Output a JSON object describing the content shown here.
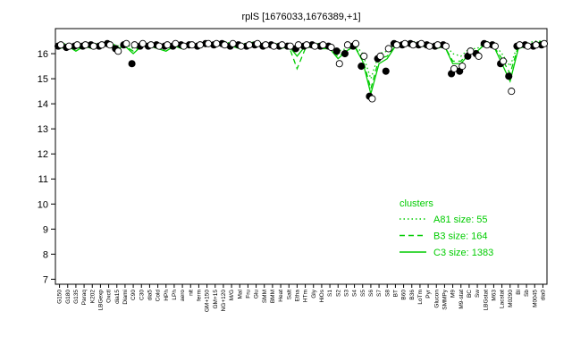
{
  "chart_data": {
    "type": "line",
    "title": "rplS [1676033,1676389,+1]",
    "categories": [
      "G150",
      "G180",
      "G135",
      "Paraq",
      "K202",
      "LBGexp",
      "Oxctl",
      "dia15",
      "Diami",
      "C90",
      "C30",
      "dia5",
      "Cold",
      "HPh",
      "LPh",
      "aero",
      "nit",
      "ferm",
      "GM+150",
      "GM+15",
      "NG+120",
      "M/G",
      "Mal",
      "Fru",
      "Glu",
      "SMM",
      "BMM",
      "Heat",
      "Salt",
      "Etha",
      "HTm",
      "Gly",
      "HiOs",
      "S1",
      "S2",
      "S3",
      "S4",
      "S5",
      "S6",
      "S7",
      "S8",
      "BT",
      "B60",
      "B36",
      "LoTm",
      "Pyr",
      "Glucon",
      "SMMPy",
      "M9",
      "M9-stat",
      "BC",
      "Sw",
      "LBGstat",
      "M63",
      "Lacstat",
      "M0290",
      "Bl",
      "Sb",
      "M0045",
      "dia0"
    ],
    "ylim": [
      6.8,
      17.0
    ],
    "yticks": [
      7,
      8,
      9,
      10,
      11,
      12,
      13,
      14,
      15,
      16
    ],
    "legend_title": "clusters",
    "legend_position": "lower right",
    "points": [
      {
        "style": "filled",
        "color": "#000000",
        "values": [
          16.3,
          16.25,
          16.3,
          16.3,
          16.35,
          16.3,
          16.4,
          16.2,
          16.35,
          15.6,
          16.3,
          16.3,
          16.35,
          16.3,
          16.3,
          16.35,
          16.35,
          16.3,
          16.4,
          16.35,
          16.4,
          16.3,
          16.35,
          16.3,
          16.35,
          16.3,
          16.35,
          16.3,
          16.3,
          16.2,
          16.3,
          16.35,
          16.3,
          16.3,
          16.1,
          16.0,
          16.3,
          15.5,
          14.3,
          15.8,
          15.3,
          16.4,
          16.35,
          16.4,
          16.35,
          16.35,
          16.3,
          16.35,
          15.2,
          15.3,
          15.9,
          16.0,
          16.4,
          16.35,
          15.6,
          15.1,
          16.3,
          16.35,
          16.3,
          16.35
        ]
      },
      {
        "style": "open",
        "color": "#000000",
        "values": [
          16.35,
          16.3,
          16.35,
          16.35,
          16.3,
          16.35,
          16.35,
          16.1,
          16.4,
          16.35,
          16.4,
          16.35,
          16.3,
          16.35,
          16.4,
          16.3,
          16.35,
          16.35,
          16.4,
          16.4,
          16.35,
          16.4,
          16.3,
          16.35,
          16.4,
          16.35,
          16.3,
          16.35,
          16.3,
          16.35,
          16.35,
          16.3,
          16.35,
          16.25,
          15.6,
          16.35,
          16.4,
          15.9,
          14.2,
          15.9,
          16.2,
          16.35,
          16.4,
          16.35,
          16.4,
          16.3,
          16.35,
          16.3,
          15.4,
          15.5,
          16.1,
          15.9,
          16.35,
          16.3,
          15.7,
          14.5,
          16.35,
          16.3,
          16.35,
          16.4
        ]
      }
    ],
    "series": [
      {
        "name": "A81 size: 55",
        "color": "#00cc00",
        "dash": "dotted",
        "values": [
          16.4,
          16.4,
          16.3,
          16.4,
          16.4,
          16.4,
          16.5,
          16.3,
          16.4,
          16.2,
          16.4,
          16.4,
          16.4,
          16.3,
          16.4,
          16.3,
          16.4,
          16.4,
          16.5,
          16.4,
          16.5,
          16.4,
          16.4,
          16.4,
          16.5,
          16.4,
          16.4,
          16.4,
          16.4,
          16.2,
          16.3,
          16.4,
          16.4,
          16.3,
          16.1,
          16.2,
          16.4,
          16.0,
          15.0,
          16.0,
          16.1,
          16.4,
          16.4,
          16.5,
          16.4,
          16.4,
          16.4,
          16.4,
          16.0,
          15.9,
          16.2,
          16.2,
          16.5,
          16.4,
          16.0,
          15.5,
          16.4,
          16.4,
          16.5,
          16.5
        ]
      },
      {
        "name": "B3 size: 164",
        "color": "#00cc00",
        "dash": "dashed",
        "values": [
          16.3,
          16.3,
          16.2,
          16.3,
          16.3,
          16.3,
          16.4,
          16.3,
          16.3,
          16.1,
          16.3,
          16.3,
          16.3,
          16.2,
          16.3,
          16.2,
          16.3,
          16.3,
          16.4,
          16.4,
          16.4,
          16.3,
          16.3,
          16.3,
          16.4,
          16.3,
          16.3,
          16.3,
          16.3,
          15.4,
          16.2,
          16.3,
          16.3,
          16.2,
          15.9,
          16.1,
          16.3,
          15.8,
          14.6,
          15.8,
          15.9,
          16.3,
          16.3,
          16.4,
          16.3,
          16.3,
          16.3,
          16.3,
          15.7,
          15.7,
          16.1,
          16.1,
          16.4,
          16.3,
          15.8,
          15.2,
          16.3,
          16.3,
          16.4,
          16.4
        ]
      },
      {
        "name": "C3 size: 1383",
        "color": "#00cc00",
        "dash": "solid",
        "values": [
          16.2,
          16.3,
          16.1,
          16.3,
          16.2,
          16.3,
          16.4,
          16.2,
          16.3,
          16.0,
          16.3,
          16.3,
          16.2,
          16.1,
          16.3,
          16.2,
          16.3,
          16.2,
          16.4,
          16.3,
          16.4,
          16.3,
          16.2,
          16.3,
          16.4,
          16.3,
          16.3,
          16.2,
          16.3,
          15.9,
          16.3,
          16.3,
          16.2,
          16.2,
          15.8,
          16.1,
          16.3,
          15.7,
          14.4,
          15.6,
          15.8,
          16.3,
          16.3,
          16.4,
          16.3,
          16.3,
          16.2,
          16.3,
          15.6,
          15.6,
          16.0,
          16.1,
          16.4,
          16.3,
          15.6,
          14.9,
          16.2,
          16.3,
          16.4,
          16.5
        ]
      }
    ]
  }
}
